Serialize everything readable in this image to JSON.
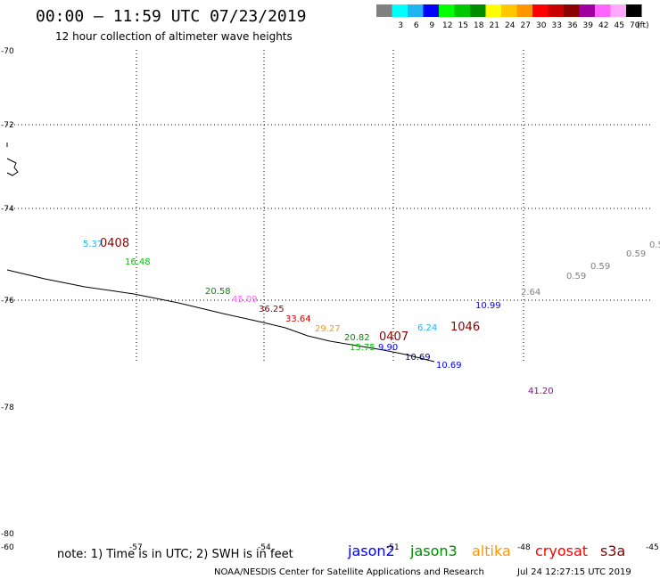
{
  "header": {
    "title": "00:00 – 11:59 UTC 07/23/2019",
    "subtitle": "12 hour collection of altimeter wave heights"
  },
  "legend": {
    "unit": "(ft)",
    "swatches": [
      {
        "label": "",
        "color": "#808080"
      },
      {
        "label": "3",
        "color": "#00ffff"
      },
      {
        "label": "6",
        "color": "#1fb4f0"
      },
      {
        "label": "9",
        "color": "#0000ff"
      },
      {
        "label": "12",
        "color": "#00ff00"
      },
      {
        "label": "15",
        "color": "#00c800"
      },
      {
        "label": "18",
        "color": "#008c00"
      },
      {
        "label": "21",
        "color": "#ffff00"
      },
      {
        "label": "24",
        "color": "#ffc800"
      },
      {
        "label": "27",
        "color": "#ff9600"
      },
      {
        "label": "30",
        "color": "#ff0000"
      },
      {
        "label": "33",
        "color": "#c80000"
      },
      {
        "label": "36",
        "color": "#8c0000"
      },
      {
        "label": "39",
        "color": "#a000a0"
      },
      {
        "label": "42",
        "color": "#ff64ff"
      },
      {
        "label": "45",
        "color": "#ffaaff"
      },
      {
        "label": "70",
        "color": "#000000"
      }
    ]
  },
  "axes": {
    "lat_labels": [
      "-70",
      "-72",
      "-74",
      "-76",
      "-78",
      "-80"
    ],
    "lon_labels": [
      "-60",
      "-57",
      "-54",
      "-51",
      "-48",
      "-45"
    ]
  },
  "observations": [
    {
      "text": "5.37",
      "color": "#1fb4f0"
    },
    {
      "text": "0408",
      "color": "#8c0000"
    },
    {
      "text": "16.48",
      "color": "#00c800"
    },
    {
      "text": "20.58",
      "color": "#008c00"
    },
    {
      "text": "45.09",
      "color": "#ff64ff"
    },
    {
      "text": "36.25",
      "color": "#8c0000"
    },
    {
      "text": "33.64",
      "color": "#c80000"
    },
    {
      "text": "29.27",
      "color": "#ff9600"
    },
    {
      "text": "20.82",
      "color": "#008c00"
    },
    {
      "text": "0407",
      "color": "#8c0000"
    },
    {
      "text": "15.75",
      "color": "#00c800"
    },
    {
      "text": "9.90",
      "color": "#0000ff"
    },
    {
      "text": "10.69",
      "color": "#00008c"
    },
    {
      "text": "10.69",
      "color": "#0000ff"
    },
    {
      "text": "6.24",
      "color": "#1fb4f0"
    },
    {
      "text": "1046",
      "color": "#8c0000"
    },
    {
      "text": "10.99",
      "color": "#0000ff"
    },
    {
      "text": "2.64",
      "color": "#808080"
    },
    {
      "text": "0.59",
      "color": "#808080"
    },
    {
      "text": "0.59",
      "color": "#808080"
    },
    {
      "text": "0.59",
      "color": "#808080"
    },
    {
      "text": "0.5",
      "color": "#808080"
    },
    {
      "text": "41.20",
      "color": "#a000a0"
    }
  ],
  "footer": {
    "note": "note: 1) Time is in UTC; 2) SWH is in feet",
    "satellites": [
      {
        "name": "jason2",
        "color": "#0000ff"
      },
      {
        "name": "jason3",
        "color": "#008c00"
      },
      {
        "name": "altika",
        "color": "#ff9600"
      },
      {
        "name": "cryosat",
        "color": "#ff0000"
      },
      {
        "name": "s3a",
        "color": "#8c0000"
      }
    ],
    "credit": "NOAA/NESDIS Center for Satellite Applications and Research",
    "timestamp": "Jul 24 12:27:15 UTC 2019"
  }
}
